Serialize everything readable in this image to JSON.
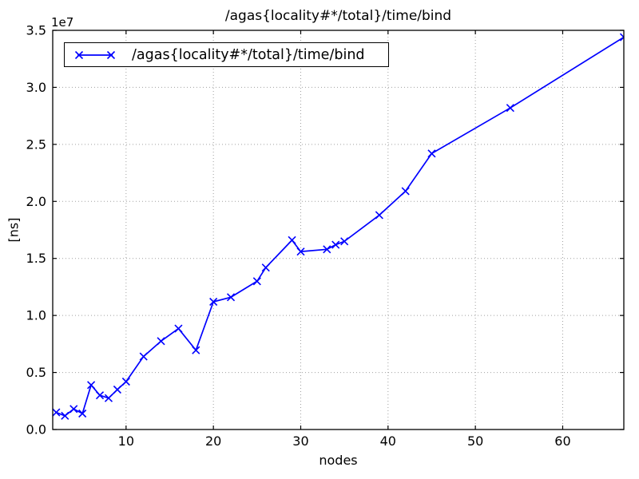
{
  "figure": {
    "background": "#ffffff"
  },
  "chart_data": {
    "type": "line",
    "title": "/agas{locality#*/total}/time/bind",
    "xlabel": "nodes",
    "ylabel": "[ns]",
    "offset_text": "1e7",
    "grid": true,
    "legend": {
      "position": "upper-left",
      "entries": [
        {
          "label": "/agas{locality#*/total}/time/bind",
          "color": "#0000ff",
          "marker": "x"
        }
      ]
    },
    "line_color": "#0000ff",
    "grid_color": "#a0a0a0",
    "spine_color": "#000000",
    "xlim": [
      1.6,
      67
    ],
    "ylim": [
      0,
      35000000
    ],
    "xticks": [
      10,
      20,
      30,
      40,
      50,
      60
    ],
    "xtick_labels": [
      "10",
      "20",
      "30",
      "40",
      "50",
      "60"
    ],
    "yticks": [
      0,
      5000000,
      10000000,
      15000000,
      20000000,
      25000000,
      30000000,
      35000000
    ],
    "ytick_labels": [
      "0.0",
      "0.5",
      "1.0",
      "1.5",
      "2.0",
      "2.5",
      "3.0",
      "3.5"
    ],
    "x": [
      2,
      3,
      4,
      5,
      6,
      7,
      8,
      9,
      10,
      12,
      14,
      16,
      18,
      20,
      22,
      25,
      26,
      29,
      30,
      33,
      34,
      35,
      39,
      42,
      45,
      54,
      67
    ],
    "y_ns": [
      1500000,
      1200000,
      1800000,
      1400000,
      3900000,
      3000000,
      2750000,
      3500000,
      4200000,
      6400000,
      7750000,
      8850000,
      6950000,
      11200000,
      11600000,
      13000000,
      14200000,
      16600000,
      15600000,
      15800000,
      16200000,
      16500000,
      18800000,
      20900000,
      24200000,
      28200000,
      34400000
    ]
  }
}
